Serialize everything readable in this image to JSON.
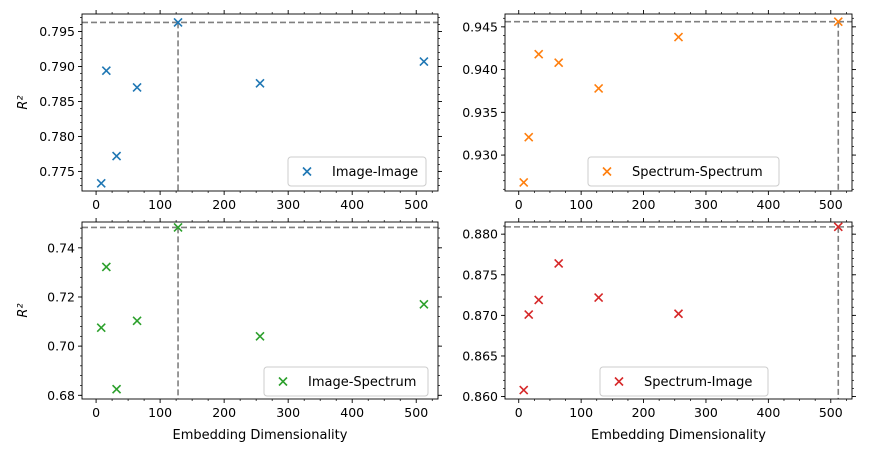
{
  "chart_data": [
    {
      "type": "scatter",
      "ylabel": "R²",
      "xlabel": "",
      "xlim": [
        -22,
        534
      ],
      "ylim": [
        0.7722,
        0.7975
      ],
      "xticks": [
        0,
        100,
        200,
        300,
        400,
        500
      ],
      "yticks": [
        0.775,
        0.78,
        0.785,
        0.79,
        0.795
      ],
      "ytick_labels": [
        "0.775",
        "0.780",
        "0.785",
        "0.790",
        "0.795"
      ],
      "series": [
        {
          "name": "Image-Image",
          "color": "#1f77b4",
          "marker": "x",
          "points": [
            [
              8,
              0.7733
            ],
            [
              16,
              0.7894
            ],
            [
              32,
              0.7772
            ],
            [
              64,
              0.787
            ],
            [
              128,
              0.7963
            ],
            [
              256,
              0.7876
            ],
            [
              512,
              0.7907
            ]
          ]
        }
      ],
      "best": {
        "x": 128,
        "y": 0.7963
      },
      "legend_position": "lower right"
    },
    {
      "type": "scatter",
      "ylabel": "",
      "xlabel": "",
      "xlim": [
        -22,
        534
      ],
      "ylim": [
        0.9258,
        0.9465
      ],
      "xticks": [
        0,
        100,
        200,
        300,
        400,
        500
      ],
      "yticks": [
        0.93,
        0.935,
        0.94,
        0.945
      ],
      "ytick_labels": [
        "0.930",
        "0.935",
        "0.940",
        "0.945"
      ],
      "series": [
        {
          "name": "Spectrum-Spectrum",
          "color": "#ff7f0e",
          "marker": "x",
          "points": [
            [
              8,
              0.9268
            ],
            [
              16,
              0.9321
            ],
            [
              32,
              0.9418
            ],
            [
              64,
              0.9408
            ],
            [
              128,
              0.9378
            ],
            [
              256,
              0.9438
            ],
            [
              512,
              0.9456
            ]
          ]
        }
      ],
      "best": {
        "x": 512,
        "y": 0.9456
      },
      "legend_position": "lower center"
    },
    {
      "type": "scatter",
      "ylabel": "R²",
      "xlabel": "Embedding Dimensionality",
      "xlim": [
        -22,
        534
      ],
      "ylim": [
        0.6785,
        0.7505
      ],
      "xticks": [
        0,
        100,
        200,
        300,
        400,
        500
      ],
      "yticks": [
        0.68,
        0.7,
        0.72,
        0.74
      ],
      "ytick_labels": [
        "0.68",
        "0.70",
        "0.72",
        "0.74"
      ],
      "series": [
        {
          "name": "Image-Spectrum",
          "color": "#2ca02c",
          "marker": "x",
          "points": [
            [
              8,
              0.7075
            ],
            [
              16,
              0.7322
            ],
            [
              32,
              0.6825
            ],
            [
              64,
              0.7103
            ],
            [
              128,
              0.7483
            ],
            [
              256,
              0.704
            ],
            [
              512,
              0.717
            ]
          ]
        }
      ],
      "best": {
        "x": 128,
        "y": 0.7483
      },
      "legend_position": "lower right"
    },
    {
      "type": "scatter",
      "ylabel": "",
      "xlabel": "Embedding Dimensionality",
      "xlim": [
        -22,
        534
      ],
      "ylim": [
        0.8597,
        0.8815
      ],
      "xticks": [
        0,
        100,
        200,
        300,
        400,
        500
      ],
      "yticks": [
        0.86,
        0.865,
        0.87,
        0.875,
        0.88
      ],
      "ytick_labels": [
        "0.860",
        "0.865",
        "0.870",
        "0.875",
        "0.880"
      ],
      "series": [
        {
          "name": "Spectrum-Image",
          "color": "#d62728",
          "marker": "x",
          "points": [
            [
              8,
              0.8608
            ],
            [
              16,
              0.8701
            ],
            [
              32,
              0.8719
            ],
            [
              64,
              0.8764
            ],
            [
              128,
              0.8722
            ],
            [
              256,
              0.8702
            ],
            [
              512,
              0.8809
            ]
          ]
        }
      ],
      "best": {
        "x": 512,
        "y": 0.8809
      },
      "legend_position": "lower center"
    }
  ]
}
